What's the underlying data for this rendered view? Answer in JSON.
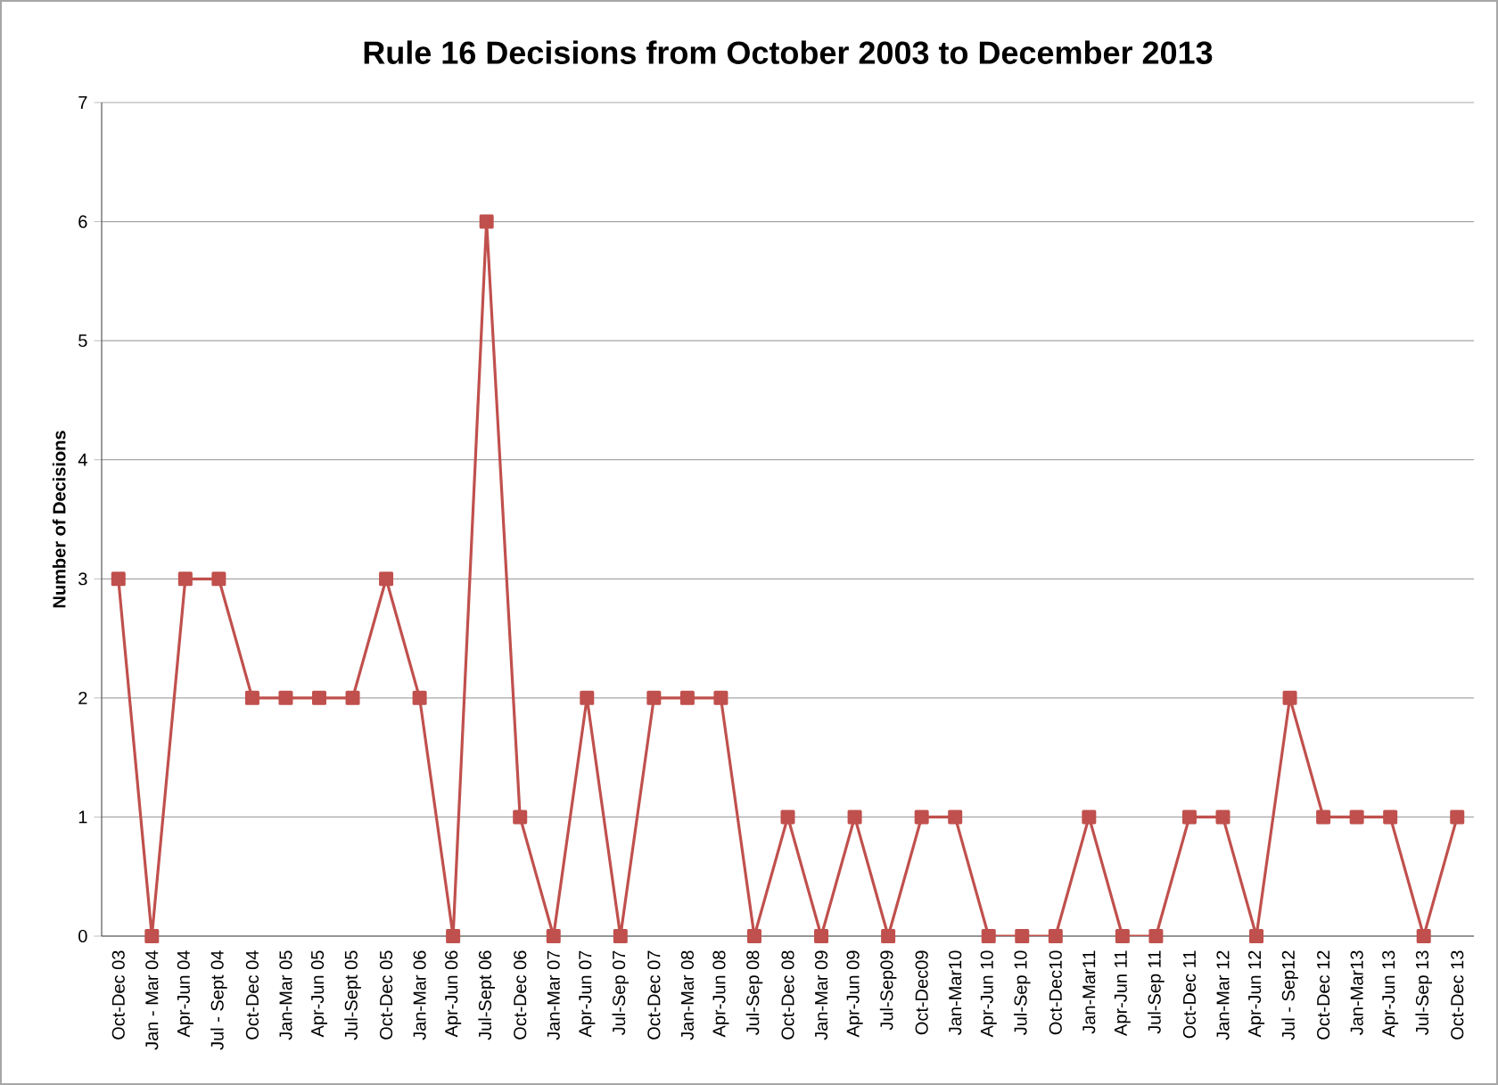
{
  "chart_data": {
    "type": "line",
    "title": "Rule 16 Decisions from October 2003 to December 2013",
    "ylabel": "Number of Decisions",
    "categories": [
      "Oct-Dec 03",
      "Jan - Mar 04",
      "Apr-Jun 04",
      "Jul - Sept 04",
      "Oct-Dec 04",
      "Jan-Mar 05",
      "Apr-Jun 05",
      "Jul-Sept 05",
      "Oct-Dec 05",
      "Jan-Mar 06",
      "Apr-Jun 06",
      "Jul-Sept 06",
      "Oct-Dec 06",
      "Jan-Mar 07",
      "Apr-Jun 07",
      "Jul-Sep 07",
      "Oct-Dec 07",
      "Jan-Mar 08",
      "Apr-Jun 08",
      "Jul-Sep 08",
      "Oct-Dec 08",
      "Jan-Mar 09",
      "Apr-Jun 09",
      "Jul-Sep09",
      "Oct-Dec09",
      "Jan-Mar10",
      "Apr-Jun 10",
      "Jul-Sep 10",
      "Oct-Dec10",
      "Jan-Mar11",
      "Apr-Jun 11",
      "Jul-Sep 11",
      "Oct-Dec 11",
      "Jan-Mar 12",
      "Apr-Jun 12",
      "Jul - Sep12",
      "Oct-Dec 12",
      "Jan-Mar13",
      "Apr-Jun 13",
      "Jul-Sep 13",
      "Oct-Dec 13"
    ],
    "series": [
      {
        "color": "#c0504d",
        "values": [
          3,
          0,
          3,
          3,
          2,
          2,
          2,
          2,
          3,
          2,
          0,
          6,
          1,
          0,
          2,
          0,
          2,
          2,
          2,
          0,
          1,
          0,
          1,
          0,
          1,
          1,
          0,
          0,
          0,
          1,
          0,
          0,
          1,
          1,
          0,
          2,
          1,
          1,
          1,
          0,
          1
        ]
      }
    ],
    "ylim": [
      0,
      7
    ],
    "yticks": [
      0,
      1,
      2,
      3,
      4,
      5,
      6,
      7
    ],
    "grid": "y",
    "marker": "square",
    "line_style": "solid"
  }
}
